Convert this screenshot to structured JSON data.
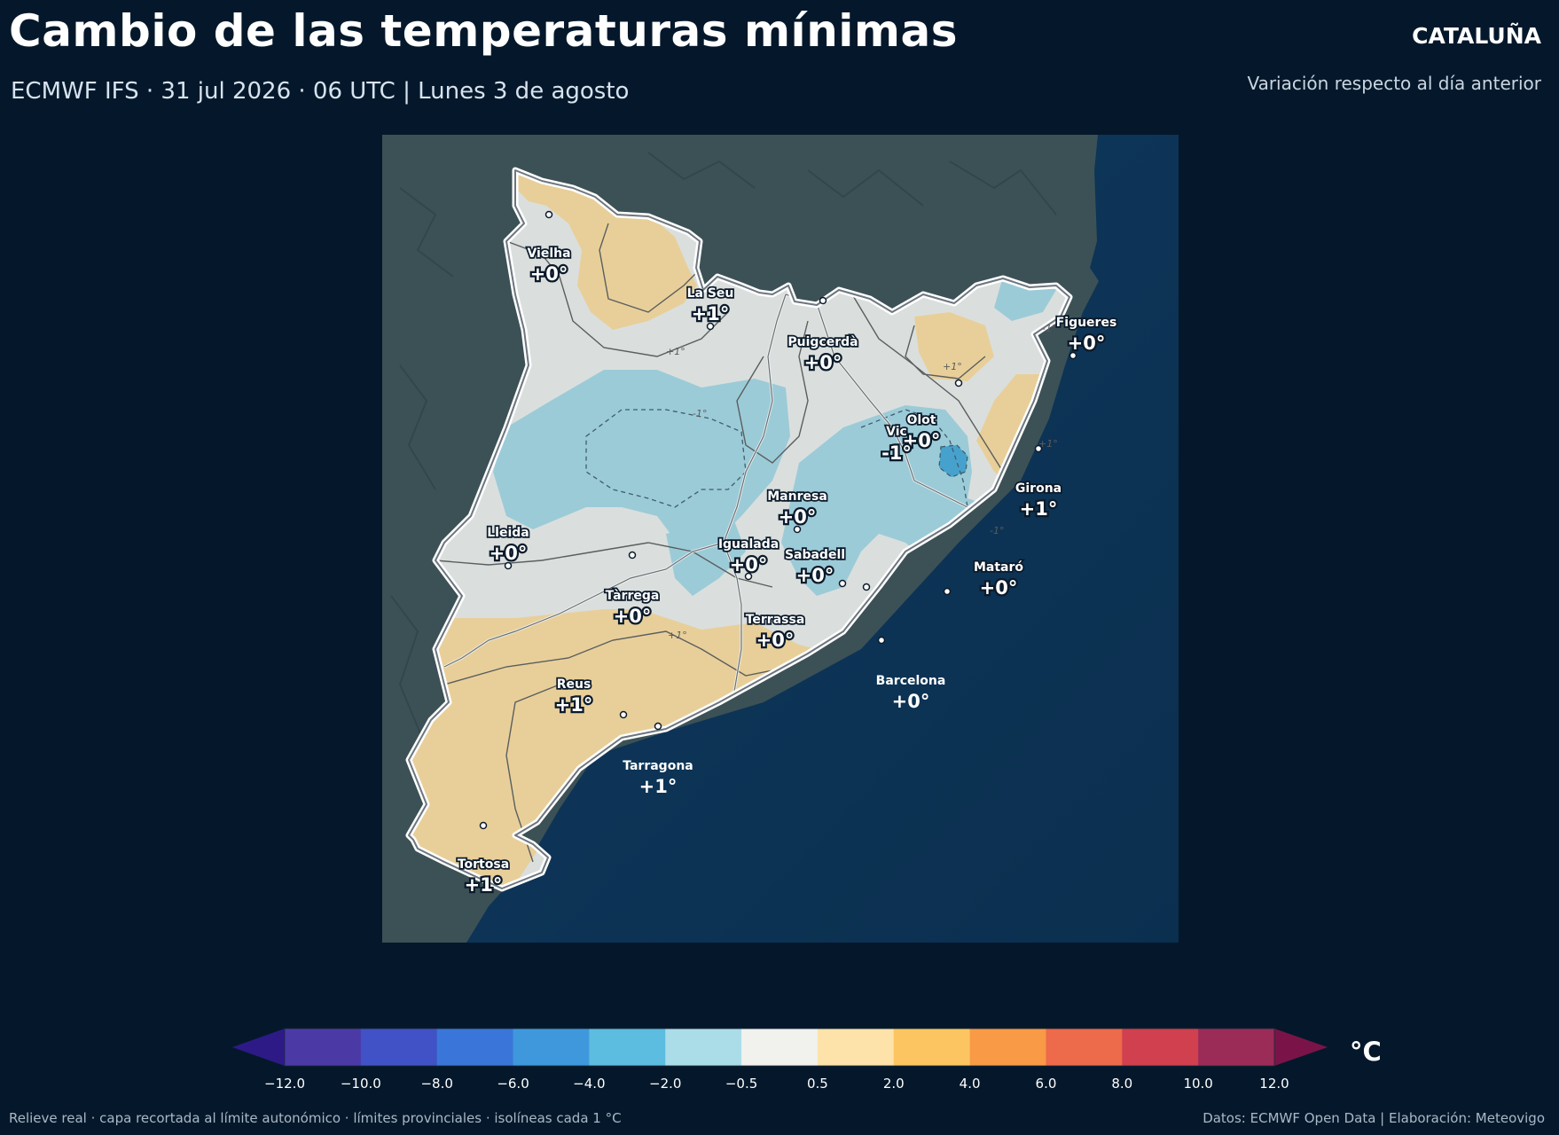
{
  "header": {
    "title": "Cambio de las temperaturas mínimas",
    "subtitle": "ECMWF IFS · 31 jul 2026 · 06 UTC  |  Lunes 3 de agosto",
    "region": "CATALUÑA",
    "description": "Variación respecto al día anterior"
  },
  "map": {
    "cities": [
      {
        "name": "Vielha",
        "value": "+0°"
      },
      {
        "name": "La Seu",
        "value": "+1°"
      },
      {
        "name": "Puigcerdà",
        "value": "+0°"
      },
      {
        "name": "Figueres",
        "value": "+0°"
      },
      {
        "name": "Olot",
        "value": "+0°"
      },
      {
        "name": "Vic",
        "value": "-1°"
      },
      {
        "name": "Girona",
        "value": "+1°"
      },
      {
        "name": "Manresa",
        "value": "+0°"
      },
      {
        "name": "Lleida",
        "value": "+0°"
      },
      {
        "name": "Igualada",
        "value": "+0°"
      },
      {
        "name": "Sabadell",
        "value": "+0°"
      },
      {
        "name": "Mataró",
        "value": "+0°"
      },
      {
        "name": "Tàrrega",
        "value": "+0°"
      },
      {
        "name": "Terrassa",
        "value": "+0°"
      },
      {
        "name": "Barcelona",
        "value": "+0°"
      },
      {
        "name": "Reus",
        "value": "+1°"
      },
      {
        "name": "Tarragona",
        "value": "+1°"
      },
      {
        "name": "Tortosa",
        "value": "+1°"
      }
    ],
    "isoline_labels": [
      "+1°",
      "+1°",
      "+1°",
      "+1°",
      "-1°",
      "-1°",
      "-1°"
    ],
    "colors": {
      "sea": "#0d3354",
      "land_relief": "#3c5156",
      "warm": "#e8cf9a",
      "neutral": "#dadfdd",
      "cool": "#9ccbd8",
      "cold_core": "#46a2cc",
      "outline": "#ffffff"
    }
  },
  "colorbar": {
    "unit": "°C",
    "ticks": [
      "−12.0",
      "−10.0",
      "−8.0",
      "−6.0",
      "−4.0",
      "−2.0",
      "−0.5",
      "0.5",
      "2.0",
      "4.0",
      "6.0",
      "8.0",
      "10.0",
      "12.0"
    ],
    "colors": [
      "#2e1a87",
      "#4b3aa6",
      "#4152c6",
      "#3a76d9",
      "#3f98dc",
      "#5cbde0",
      "#abdde9",
      "#f1f2ee",
      "#fde2a9",
      "#fcc561",
      "#f99a46",
      "#ed6a4a",
      "#d1404f",
      "#9b2c57",
      "#7a1448"
    ]
  },
  "footer": {
    "left": "Relieve real · capa recortada al límite autonómico · límites provinciales · isolíneas cada 1 °C",
    "right": "Datos: ECMWF Open Data | Elaboración: Meteovigo"
  }
}
